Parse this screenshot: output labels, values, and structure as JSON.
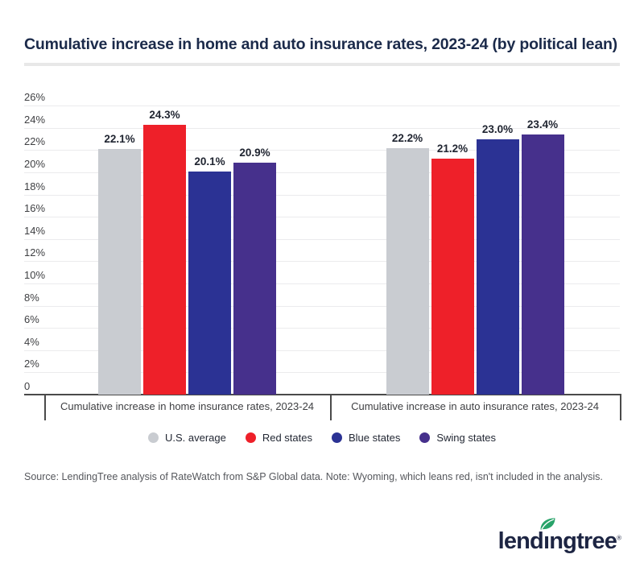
{
  "header": {
    "title": "Cumulative increase in home and auto insurance rates, 2023-24 (by political lean)"
  },
  "chart_data": {
    "type": "bar",
    "title": "Cumulative increase in home and auto insurance rates, 2023-24 (by political lean)",
    "categories": [
      "Cumulative increase in home insurance rates, 2023-24",
      "Cumulative increase in auto insurance rates, 2023-24"
    ],
    "series": [
      {
        "name": "U.S. average",
        "color": "#c9ccd1",
        "values": [
          22.1,
          22.2
        ]
      },
      {
        "name": "Red states",
        "color": "#ee2029",
        "values": [
          24.3,
          21.2
        ]
      },
      {
        "name": "Blue states",
        "color": "#2b3294",
        "values": [
          20.1,
          23.0
        ]
      },
      {
        "name": "Swing states",
        "color": "#46308c",
        "values": [
          20.9,
          23.4
        ]
      }
    ],
    "data_labels": [
      [
        "22.1%",
        "24.3%",
        "20.1%",
        "20.9%"
      ],
      [
        "22.2%",
        "21.2%",
        "23.0%",
        "23.4%"
      ]
    ],
    "value_suffix": "%",
    "ylim": [
      0,
      26
    ],
    "ytick_step": 2,
    "ytick_labels": [
      "0",
      "2%",
      "4%",
      "6%",
      "8%",
      "10%",
      "12%",
      "14%",
      "16%",
      "18%",
      "20%",
      "22%",
      "24%",
      "26%"
    ],
    "grid": true,
    "legend_position": "bottom"
  },
  "footer": {
    "source": "Source: LendingTree analysis of RateWatch from S&P Global data. Note: Wyoming, which leans red, isn't included in the analysis."
  },
  "logo": {
    "text_pre": "lend",
    "text_i": "ı",
    "text_post": "ngtree",
    "registered": "®",
    "leaf_color": "#28a369",
    "text_color": "#1d2543"
  },
  "colors": {
    "title": "#1b2a4a",
    "axis_line": "#4a4a4a",
    "gridline": "#ebebed",
    "tick_label": "#3f4043",
    "data_label": "#1f2430",
    "legend_text": "#232834",
    "source_text": "#55575c",
    "divider": "#e8e8e8"
  }
}
